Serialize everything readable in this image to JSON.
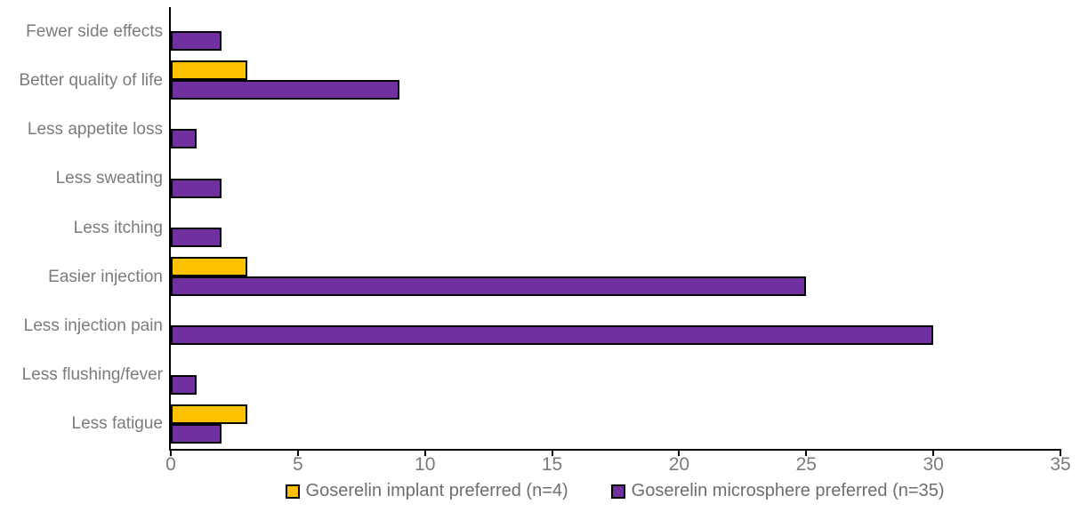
{
  "chart_data": {
    "type": "bar",
    "orientation": "horizontal",
    "title": "",
    "categories": [
      "Fewer side effects",
      "Better quality of life",
      "Less appetite loss",
      "Less sweating",
      "Less itching",
      "Easier injection",
      "Less injection pain",
      "Less flushing/fever",
      "Less fatigue"
    ],
    "series": [
      {
        "name": "Goserelin implant preferred (n=4)",
        "color": "#FFC000",
        "values": [
          0,
          3,
          0,
          0,
          0,
          3,
          0,
          0,
          3
        ]
      },
      {
        "name": "Goserelin microsphere preferred (n=35)",
        "color": "#7030A0",
        "values": [
          2,
          9,
          1,
          2,
          2,
          25,
          30,
          1,
          2
        ]
      }
    ],
    "xlabel": "",
    "ylabel": "",
    "xlim": [
      0,
      35
    ],
    "xticks": [
      0,
      5,
      10,
      15,
      20,
      25,
      30,
      35
    ],
    "grid": false,
    "legend_position": "bottom",
    "bar_border_color": "#000000",
    "axis_color": "#000000",
    "label_color": "#7B7B7B"
  }
}
